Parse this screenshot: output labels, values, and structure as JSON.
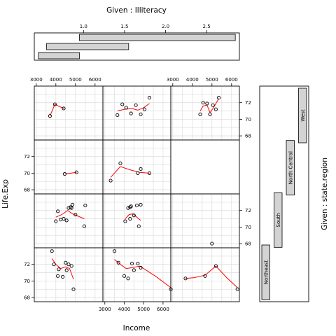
{
  "chart_data": {
    "type": "coplot",
    "xlabel": "Income",
    "ylabel": "Life.Exp",
    "top_given_label": "Given : Illiteracy",
    "right_given_label": "Given : state.region",
    "x_ticks": [
      "3000",
      "4000",
      "5000",
      "6000"
    ],
    "y_ticks": [
      "68",
      "70",
      "72"
    ],
    "given_axis_ticks": [
      "1.0",
      "1.5",
      "2.0",
      "2.5"
    ],
    "xlim": [
      2900,
      6400
    ],
    "ylim": [
      67.5,
      74
    ],
    "given_range": [
      0.4,
      2.9
    ],
    "illiteracy_intervals": [
      [
        0.45,
        0.95
      ],
      [
        0.55,
        1.55
      ],
      [
        0.95,
        2.85
      ]
    ],
    "region_bars": [
      "Northeast",
      "South",
      "North Central",
      "West"
    ],
    "colors": {
      "points": "#000000",
      "smooth": "#ff0000",
      "bar": "#d3d3d3",
      "grid": "#e0e0e0"
    },
    "panels": [
      {
        "row": 0,
        "col": 0,
        "points": [
          [
            3700,
            70.4
          ],
          [
            3950,
            71.8
          ],
          [
            4400,
            71.3
          ]
        ],
        "smooth": [
          [
            3700,
            70.4
          ],
          [
            3950,
            71.8
          ],
          [
            4400,
            71.3
          ]
        ]
      },
      {
        "row": 0,
        "col": 1,
        "points": [
          [
            3650,
            70.5
          ],
          [
            3900,
            71.8
          ],
          [
            4100,
            71.4
          ],
          [
            4350,
            70.7
          ],
          [
            4600,
            71.7
          ],
          [
            4850,
            70.6
          ],
          [
            5050,
            71.2
          ],
          [
            5300,
            72.6
          ]
        ],
        "smooth": [
          [
            3650,
            71.0
          ],
          [
            4000,
            71.2
          ],
          [
            4400,
            71.3
          ],
          [
            4700,
            71.1
          ],
          [
            5000,
            71.4
          ],
          [
            5300,
            71.9
          ]
        ]
      },
      {
        "row": 0,
        "col": 2,
        "points": [
          [
            4400,
            70.6
          ],
          [
            4550,
            72.0
          ],
          [
            4750,
            71.9
          ],
          [
            4900,
            70.6
          ],
          [
            5050,
            71.7
          ],
          [
            5200,
            71.2
          ],
          [
            5350,
            72.6
          ]
        ],
        "smooth": [
          [
            4400,
            71.0
          ],
          [
            4550,
            71.6
          ],
          [
            4750,
            71.7
          ],
          [
            4900,
            70.8
          ],
          [
            5050,
            71.3
          ],
          [
            5350,
            72.5
          ]
        ]
      },
      {
        "row": 1,
        "col": 0,
        "points": [
          [
            4450,
            69.9
          ],
          [
            5050,
            70.1
          ]
        ],
        "smooth": [
          [
            4450,
            69.9
          ],
          [
            5050,
            70.1
          ]
        ]
      },
      {
        "row": 1,
        "col": 1,
        "points": [
          [
            3300,
            69.1
          ],
          [
            3800,
            71.2
          ],
          [
            4700,
            70.0
          ],
          [
            4850,
            70.5
          ],
          [
            5300,
            70.0
          ]
        ],
        "smooth": [
          [
            3300,
            69.5
          ],
          [
            3800,
            70.8
          ],
          [
            4300,
            70.4
          ],
          [
            4800,
            70.1
          ],
          [
            5300,
            70.0
          ]
        ]
      },
      {
        "row": 1,
        "col": 2,
        "points": [
          [
            3100,
            68.1
          ],
          [
            3400,
            70.6
          ],
          [
            3550,
            68.6
          ],
          [
            3650,
            69.4
          ],
          [
            3700,
            68.9
          ],
          [
            3800,
            70.0
          ],
          [
            3900,
            70.0
          ],
          [
            3950,
            70.6
          ],
          [
            4000,
            69.2
          ],
          [
            4050,
            71.2
          ],
          [
            4150,
            68.5
          ],
          [
            4300,
            70.8
          ],
          [
            4700,
            70.2
          ],
          [
            5050,
            70.3
          ]
        ],
        "smooth": [
          [
            3100,
            68.1
          ],
          [
            3400,
            68.8
          ],
          [
            3650,
            69.2
          ],
          [
            4000,
            69.8
          ],
          [
            4300,
            70.1
          ],
          [
            4700,
            70.2
          ],
          [
            5050,
            70.2
          ]
        ]
      },
      {
        "row": 2,
        "col": 0,
        "points": [
          [
            4100,
            71.9
          ],
          [
            4250,
            70.9
          ],
          [
            4400,
            71.0
          ],
          [
            4550,
            70.8
          ],
          [
            4650,
            72.3
          ],
          [
            4750,
            72.4
          ],
          [
            4850,
            72.7
          ],
          [
            5000,
            71.5
          ],
          [
            5450,
            70.1
          ],
          [
            5500,
            72.6
          ],
          [
            4000,
            70.7
          ],
          [
            4800,
            72.3
          ]
        ],
        "smooth": [
          [
            4000,
            71.2
          ],
          [
            4300,
            71.5
          ],
          [
            4600,
            72.0
          ],
          [
            4850,
            71.6
          ],
          [
            5150,
            71.3
          ],
          [
            5450,
            71.0
          ]
        ]
      },
      {
        "row": 2,
        "col": 1,
        "points": [
          [
            4050,
            70.7
          ],
          [
            4200,
            72.3
          ],
          [
            4300,
            72.4
          ],
          [
            4350,
            72.5
          ],
          [
            4500,
            71.4
          ],
          [
            4650,
            72.6
          ],
          [
            4750,
            70.1
          ],
          [
            4850,
            72.7
          ],
          [
            4300,
            71.0
          ]
        ],
        "smooth": [
          [
            4050,
            71.0
          ],
          [
            4250,
            71.5
          ],
          [
            4450,
            71.6
          ],
          [
            4650,
            71.2
          ],
          [
            4850,
            70.8
          ]
        ]
      },
      {
        "row": 3,
        "col": 0,
        "points": [
          [
            3800,
            73.6
          ],
          [
            3900,
            72.0
          ],
          [
            4100,
            70.6
          ],
          [
            4150,
            71.4
          ],
          [
            4350,
            70.5
          ],
          [
            4500,
            72.2
          ],
          [
            4550,
            71.3
          ],
          [
            4650,
            72.0
          ],
          [
            4800,
            71.8
          ],
          [
            4900,
            69.0
          ]
        ],
        "smooth": [
          [
            3800,
            72.7
          ],
          [
            4000,
            72.0
          ],
          [
            4250,
            71.5
          ],
          [
            4500,
            71.7
          ],
          [
            4700,
            71.5
          ],
          [
            4900,
            70.2
          ]
        ]
      },
      {
        "row": 3,
        "col": 1,
        "points": [
          [
            3500,
            73.6
          ],
          [
            3700,
            72.2
          ],
          [
            4000,
            70.6
          ],
          [
            4200,
            70.3
          ],
          [
            4400,
            72.1
          ],
          [
            4500,
            71.3
          ],
          [
            4700,
            72.1
          ],
          [
            4850,
            71.6
          ],
          [
            6400,
            69.0
          ]
        ],
        "smooth": [
          [
            3500,
            72.6
          ],
          [
            3800,
            72.0
          ],
          [
            4100,
            71.5
          ],
          [
            4400,
            71.6
          ],
          [
            4800,
            71.8
          ],
          [
            5600,
            70.6
          ],
          [
            6400,
            69.2
          ]
        ]
      },
      {
        "row": 3,
        "col": 2,
        "points": [
          [
            3650,
            70.3
          ],
          [
            4650,
            70.6
          ],
          [
            5000,
            74.5
          ],
          [
            5200,
            71.8
          ],
          [
            6300,
            69.0
          ]
        ],
        "smooth": [
          [
            3650,
            70.3
          ],
          [
            4100,
            70.4
          ],
          [
            4650,
            70.7
          ],
          [
            5200,
            71.8
          ],
          [
            5750,
            70.4
          ],
          [
            6300,
            69.2
          ]
        ]
      }
    ]
  }
}
